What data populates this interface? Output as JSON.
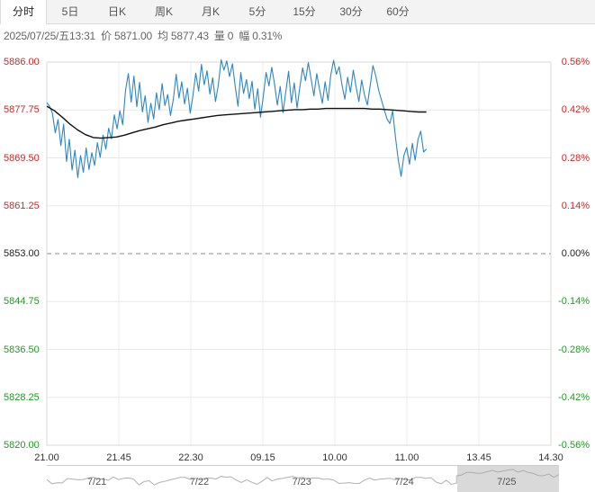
{
  "tabs": [
    {
      "label": "分时",
      "active": true
    },
    {
      "label": "5日",
      "active": false
    },
    {
      "label": "日K",
      "active": false
    },
    {
      "label": "周K",
      "active": false
    },
    {
      "label": "月K",
      "active": false
    },
    {
      "label": "5分",
      "active": false
    },
    {
      "label": "15分",
      "active": false
    },
    {
      "label": "30分",
      "active": false
    },
    {
      "label": "60分",
      "active": false
    }
  ],
  "info": {
    "datetime": "2025/07/25/五13:31",
    "price": "价 5871.00",
    "avg": "均 5877.43",
    "volume": "量 0",
    "change": "幅 0.31%"
  },
  "colors": {
    "up": "#e02020",
    "down": "#1b9e1b",
    "price_line": "#2a86c9",
    "avg_line": "#111111"
  },
  "chart_data": {
    "type": "line",
    "title": "",
    "xlabel": "",
    "ylabel": "",
    "base_price": 5853.0,
    "ylim": [
      5820.0,
      5886.0
    ],
    "y_ticks": [
      "5886.00",
      "5877.75",
      "5869.50",
      "5861.25",
      "5853.00",
      "5844.75",
      "5836.50",
      "5828.25",
      "5820.00"
    ],
    "pct_ticks": [
      "0.56%",
      "0.42%",
      "0.28%",
      "0.14%",
      "0.00%",
      "-0.14%",
      "-0.28%",
      "-0.42%",
      "-0.56%"
    ],
    "x_ticks": [
      "21.00",
      "21.45",
      "22.30",
      "09.15",
      "10.00",
      "11.00",
      "13.45",
      "14.30"
    ],
    "grid": true,
    "series": [
      {
        "values": [
          5879.0,
          5878.4,
          5877.2,
          5873.8,
          5876.1,
          5871.6,
          5875.3,
          5868.9,
          5872.7,
          5867.4,
          5870.8,
          5866.1,
          5869.9,
          5867.0,
          5871.2,
          5867.5,
          5870.4,
          5868.2,
          5872.1,
          5869.6,
          5873.4,
          5871.0,
          5874.6,
          5872.8,
          5876.9,
          5874.5,
          5877.6,
          5875.2,
          5881.2,
          5884.0,
          5879.1,
          5883.6,
          5878.3,
          5882.5,
          5877.4,
          5880.2,
          5875.6,
          5878.9,
          5876.2,
          5880.7,
          5877.8,
          5882.3,
          5878.5,
          5880.4,
          5876.8,
          5879.6,
          5883.9,
          5879.8,
          5882.6,
          5878.8,
          5881.5,
          5877.2,
          5880.3,
          5884.1,
          5881.0,
          5885.6,
          5882.1,
          5884.5,
          5880.5,
          5883.3,
          5879.2,
          5882.0,
          5886.4,
          5884.6,
          5886.2,
          5883.5,
          5885.7,
          5881.8,
          5878.4,
          5884.2,
          5880.6,
          5883.0,
          5879.7,
          5882.7,
          5877.9,
          5881.4,
          5876.5,
          5880.1,
          5884.2,
          5881.9,
          5885.1,
          5882.2,
          5878.6,
          5881.8,
          5877.3,
          5880.9,
          5884.4,
          5879.0,
          5882.4,
          5878.1,
          5881.7,
          5885.0,
          5882.8,
          5885.9,
          5883.1,
          5880.2,
          5884.0,
          5881.3,
          5878.9,
          5882.6,
          5879.4,
          5883.8,
          5886.3,
          5883.9,
          5885.2,
          5882.0,
          5879.6,
          5883.4,
          5880.8,
          5884.6,
          5881.7,
          5879.2,
          5882.9,
          5880.3,
          5878.6,
          5881.9,
          5885.4,
          5883.6,
          5881.2,
          5879.5,
          5877.8,
          5876.2,
          5875.4,
          5877.6,
          5873.1,
          5869.2,
          5866.3,
          5869.9,
          5871.3,
          5868.4,
          5872.0,
          5869.1,
          5872.6,
          5874.1,
          5870.5,
          5871.0
        ]
      },
      {
        "values": [
          5878.4,
          5877.6,
          5876.5,
          5875.3,
          5874.3,
          5873.5,
          5873.0,
          5872.9,
          5873.0,
          5873.1,
          5873.4,
          5873.8,
          5874.2,
          5874.5,
          5874.8,
          5875.2,
          5875.5,
          5875.8,
          5876.0,
          5876.2,
          5876.4,
          5876.6,
          5876.8,
          5876.9,
          5877.0,
          5877.1,
          5877.2,
          5877.3,
          5877.4,
          5877.5,
          5877.6,
          5877.7,
          5877.8,
          5877.8,
          5877.9,
          5877.9,
          5878.0,
          5878.0,
          5878.0,
          5878.0,
          5878.0,
          5878.0,
          5877.9,
          5877.9,
          5877.8,
          5877.7,
          5877.6,
          5877.5,
          5877.4,
          5877.4
        ]
      }
    ]
  },
  "navigator": {
    "days": [
      "7/21",
      "7/22",
      "7/23",
      "7/24",
      "7/25"
    ]
  }
}
